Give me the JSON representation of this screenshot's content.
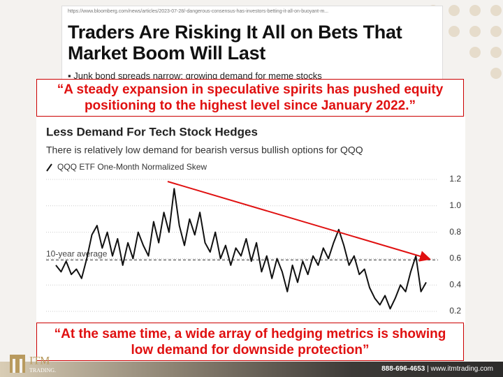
{
  "browser": {
    "url": "https://www.bloomberg.com/news/articles/2023-07-28/-dangerous-consensus-has-investors-betting-it-all-on-buoyant-m..."
  },
  "article": {
    "headline": "Traders Are Risking It All on Bets That Market Boom Will Last",
    "bullet": "Junk bond spreads narrow; growing demand for meme stocks"
  },
  "quotes": [
    "“A steady expansion in speculative spirits has pushed equity positioning to the highest level since January 2022.”",
    "“At the same time, a wide array of hedging metrics is showing low demand for downside protection”"
  ],
  "footer": {
    "logo_top": "ITM",
    "logo_bottom": "TRADING.",
    "phone": "888-696-4653",
    "website": "www.itmtrading.com"
  },
  "chart_data": {
    "type": "line",
    "title": "Less Demand For Tech Stock Hedges",
    "subtitle": "There is relatively low demand for bearish versus bullish options for QQQ",
    "categories": [
      null,
      null,
      null,
      null,
      null,
      null,
      null,
      null,
      null,
      null,
      null,
      null,
      null,
      null,
      null,
      null,
      null,
      null,
      null,
      null,
      null,
      null,
      null,
      null,
      null,
      null,
      null,
      null,
      null,
      null,
      null,
      null,
      null,
      null,
      null,
      null,
      null,
      null,
      null,
      null,
      null,
      null,
      null,
      null,
      null,
      null,
      null,
      null,
      null,
      null,
      null,
      null,
      null,
      null,
      null,
      null,
      null,
      null,
      null,
      null,
      null,
      null,
      null,
      null,
      null,
      null,
      null,
      null,
      null,
      null,
      null,
      null,
      null
    ],
    "series": [
      {
        "name": "QQQ ETF One-Month Normalized Skew",
        "color": "#111111",
        "values": [
          0.55,
          0.5,
          0.58,
          0.48,
          0.52,
          0.45,
          0.6,
          0.78,
          0.85,
          0.68,
          0.8,
          0.62,
          0.75,
          0.55,
          0.72,
          0.6,
          0.8,
          0.7,
          0.62,
          0.88,
          0.72,
          0.95,
          0.8,
          1.13,
          0.85,
          0.7,
          0.9,
          0.78,
          0.95,
          0.72,
          0.65,
          0.8,
          0.6,
          0.7,
          0.55,
          0.68,
          0.62,
          0.75,
          0.58,
          0.72,
          0.5,
          0.62,
          0.45,
          0.6,
          0.5,
          0.35,
          0.55,
          0.42,
          0.58,
          0.48,
          0.62,
          0.55,
          0.68,
          0.6,
          0.72,
          0.82,
          0.7,
          0.55,
          0.62,
          0.48,
          0.52,
          0.38,
          0.3,
          0.25,
          0.32,
          0.22,
          0.3,
          0.4,
          0.35,
          0.5,
          0.62,
          0.35,
          0.42
        ]
      }
    ],
    "ylim": [
      0.15,
      1.25
    ],
    "yticks": [
      0.2,
      0.4,
      0.6,
      0.8,
      {
        "value": 1,
        "label": "1.0"
      },
      1.2
    ],
    "grid": true,
    "reference_line": {
      "label": "10-year average",
      "value": 0.59
    }
  }
}
